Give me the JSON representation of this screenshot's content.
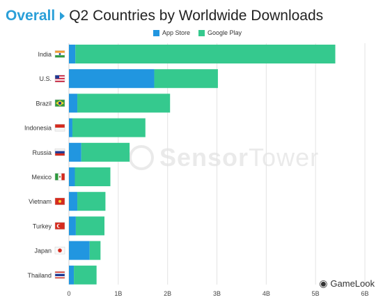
{
  "header": {
    "brand": "Overall",
    "title": "Q2 Countries by Worldwide Downloads"
  },
  "colors": {
    "app_store": "#2196e0",
    "google_play": "#35c98e",
    "brand": "#2a9fd8"
  },
  "watermark": {
    "part1": "Sensor",
    "part2": "Tower"
  },
  "credit": {
    "icon": "wechat-icon",
    "label": "GameLook"
  },
  "chart_data": {
    "type": "bar",
    "orientation": "horizontal",
    "stacked": true,
    "title": "Q2 Countries by Worldwide Downloads",
    "categories": [
      "India",
      "U.S.",
      "Brazil",
      "Indonesia",
      "Russia",
      "Mexico",
      "Vietnam",
      "Turkey",
      "Japan",
      "Thailand"
    ],
    "flags": [
      "flag-india",
      "flag-us",
      "flag-brazil",
      "flag-indonesia",
      "flag-russia",
      "flag-mexico",
      "flag-vietnam",
      "flag-turkey",
      "flag-japan",
      "flag-thailand"
    ],
    "series": [
      {
        "name": "App Store",
        "color": "#2196e0",
        "values": [
          0.13,
          1.73,
          0.17,
          0.07,
          0.25,
          0.12,
          0.17,
          0.14,
          0.42,
          0.1
        ]
      },
      {
        "name": "Google Play",
        "color": "#35c98e",
        "values": [
          5.27,
          1.29,
          1.88,
          1.48,
          0.98,
          0.72,
          0.57,
          0.58,
          0.22,
          0.46
        ]
      }
    ],
    "xticks": [
      "0",
      "1B",
      "2B",
      "3B",
      "4B",
      "5B",
      "6B"
    ],
    "xlim": [
      0,
      6
    ],
    "unit": "B",
    "grid": true,
    "legend_position": "top-center"
  }
}
